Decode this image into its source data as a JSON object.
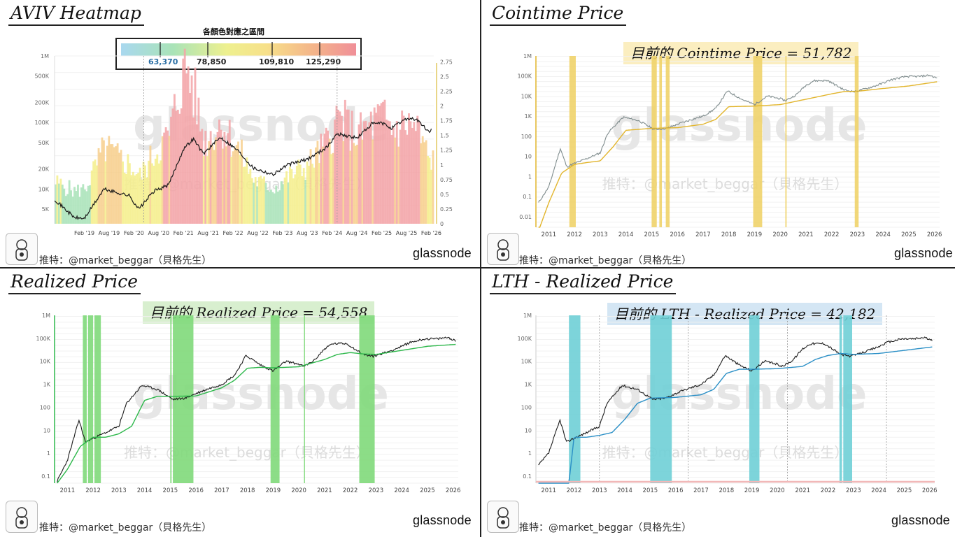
{
  "colors": {
    "aviv_band": [
      "#a9d8ef",
      "#a9e3b8",
      "#f4ef8c",
      "#f7cf8d",
      "#f3a3a7"
    ],
    "cointime_line": "#e2b52c",
    "realized_line": "#2db84b",
    "lth_line": "#2a8fc6",
    "price_line": "#1a1a1a",
    "price_line_grey": "#7f8c8d",
    "cointime_bands": "#f0d36a",
    "realized_bands": "#7fd97a",
    "lth_bands": "#6fcfd6",
    "callout_cointime_bg": "#fbeec0",
    "callout_realized_bg": "#d8efcf",
    "callout_lth_bg": "#d4e6f4"
  },
  "icons": [
    "avatar-icon",
    "glassnode-logo"
  ],
  "watermark": "glassnode",
  "handle_watermark": "推特：@market_beggar（貝格先生）",
  "credit": "推特：@market_beggar（貝格先生）",
  "logo": "glassnode",
  "chart_data": [
    {
      "type": "area",
      "title": "AVIV Heatmap",
      "legend_title": "各顏色對應之區間",
      "legend_thresholds": [
        "63,370",
        "78,850",
        "109,810",
        "125,290"
      ],
      "xlabel": "",
      "ylabel": "",
      "yscale": "log",
      "y_ticks": [
        "1M",
        "500K",
        "200K",
        "100K",
        "50K",
        "20K",
        "10K",
        "5K"
      ],
      "y2_ticks": [
        "2.75",
        "2.5",
        "2.25",
        "2",
        "1.75",
        "1.5",
        "1.25",
        "1",
        "0.75",
        "0.5",
        "0.25",
        "0"
      ],
      "x_ticks": [
        "Feb '19",
        "Aug '19",
        "Feb '20",
        "Aug '20",
        "Feb '21",
        "Aug '21",
        "Feb '22",
        "Aug '22",
        "Feb '23",
        "Aug '23",
        "Feb '24",
        "Aug '24",
        "Feb '25",
        "Aug '25",
        "Feb '26"
      ],
      "price_series": {
        "name": "",
        "x": [
          2018.5,
          2018.9,
          2019.1,
          2019.5,
          2019.7,
          2020.0,
          2020.2,
          2020.5,
          2020.8,
          2021.1,
          2021.3,
          2021.5,
          2021.85,
          2022.2,
          2022.5,
          2022.9,
          2023.2,
          2023.6,
          2024.0,
          2024.2,
          2024.6,
          2024.9,
          2025.1,
          2025.3,
          2025.6,
          2025.8,
          2026.05,
          2026.1
        ],
        "y": [
          7000,
          3700,
          3600,
          10000,
          9000,
          8000,
          5000,
          9200,
          11500,
          40000,
          57000,
          34000,
          60000,
          38000,
          21000,
          16500,
          23000,
          28000,
          43000,
          68000,
          58000,
          95000,
          98000,
          82000,
          115000,
          112000,
          72000,
          78000
        ]
      },
      "aviv_series": {
        "name": "",
        "x": [
          2018.5,
          2018.9,
          2019.1,
          2019.5,
          2019.7,
          2020.0,
          2020.2,
          2020.5,
          2020.8,
          2021.0,
          2021.15,
          2021.3,
          2021.5,
          2021.85,
          2022.2,
          2022.5,
          2022.9,
          2023.2,
          2023.6,
          2024.0,
          2024.2,
          2024.6,
          2024.9,
          2025.1,
          2025.3,
          2025.6,
          2025.8,
          2026.05,
          2026.1
        ],
        "y": [
          0.7,
          0.55,
          0.6,
          1.3,
          1.15,
          1.0,
          0.8,
          1.2,
          1.5,
          2.3,
          2.7,
          2.2,
          1.4,
          1.7,
          1.25,
          0.75,
          0.6,
          0.8,
          1.0,
          1.4,
          1.8,
          1.5,
          1.7,
          1.8,
          1.6,
          1.7,
          1.6,
          1.05,
          1.1
        ]
      }
    },
    {
      "type": "line",
      "title": "Cointime Price",
      "callout": "目前的 Cointime Price = 51,782",
      "yscale": "log",
      "y_ticks": [
        "1M",
        "100K",
        "10K",
        "1K",
        "100",
        "10",
        "1",
        "0.1",
        "0.01"
      ],
      "x_ticks": [
        "2011",
        "2012",
        "2013",
        "2014",
        "2015",
        "2016",
        "2017",
        "2018",
        "2019",
        "2020",
        "2021",
        "2022",
        "2023",
        "2024",
        "2025",
        "2026"
      ],
      "series": [
        {
          "name": "",
          "x": [
            2010.6,
            2011.0,
            2011.45,
            2011.7,
            2011.9,
            2012.5,
            2013.0,
            2013.3,
            2013.9,
            2014.5,
            2015.1,
            2015.6,
            2016.0,
            2016.5,
            2017.0,
            2017.5,
            2017.95,
            2018.5,
            2019.0,
            2019.5,
            2020.0,
            2020.2,
            2020.6,
            2021.0,
            2021.3,
            2021.85,
            2022.5,
            2022.9,
            2023.5,
            2024.0,
            2024.3,
            2024.9,
            2025.4,
            2025.8,
            2026.1
          ],
          "y": [
            0.05,
            0.3,
            25,
            3,
            4,
            8,
            15,
            150,
            900,
            600,
            220,
            250,
            400,
            650,
            1000,
            2500,
            18000,
            7000,
            3800,
            10000,
            7500,
            6000,
            11000,
            35000,
            58000,
            60000,
            20000,
            16500,
            27000,
            44000,
            65000,
            95000,
            95000,
            110000,
            78000
          ]
        },
        {
          "name": "",
          "x": [
            2010.6,
            2011.0,
            2011.5,
            2012.0,
            2012.5,
            2013.0,
            2013.5,
            2014.0,
            2015.0,
            2016.0,
            2017.0,
            2017.5,
            2018.0,
            2019.0,
            2020.0,
            2021.0,
            2022.0,
            2022.5,
            2023.0,
            2024.0,
            2025.0,
            2026.1
          ],
          "y": [
            0.002,
            0.05,
            1.5,
            4,
            5,
            6,
            30,
            200,
            250,
            270,
            400,
            700,
            3000,
            3200,
            3800,
            7000,
            13000,
            17000,
            17500,
            24000,
            32000,
            51782
          ]
        }
      ],
      "highlight_ranges": [
        [
          2011.8,
          2012.05
        ],
        [
          2015.0,
          2015.2
        ],
        [
          2015.3,
          2015.4
        ],
        [
          2015.55,
          2015.7
        ],
        [
          2018.95,
          2019.3
        ],
        [
          2020.2,
          2020.25
        ],
        [
          2022.9,
          2023.05
        ]
      ]
    },
    {
      "type": "line",
      "title": "Realized Price",
      "callout": "目前的 Realized Price = 54,558",
      "yscale": "log",
      "y_ticks": [
        "1M",
        "100K",
        "10K",
        "1K",
        "100",
        "10",
        "1",
        "0.1"
      ],
      "x_ticks": [
        "2011",
        "2012",
        "2013",
        "2014",
        "2015",
        "2016",
        "2017",
        "2018",
        "2019",
        "2020",
        "2021",
        "2022",
        "2023",
        "2024",
        "2025",
        "2026"
      ],
      "series": [
        {
          "name": "",
          "x": [
            2010.6,
            2011.0,
            2011.45,
            2011.7,
            2011.9,
            2012.5,
            2013.0,
            2013.3,
            2013.9,
            2014.5,
            2015.1,
            2015.6,
            2016.0,
            2016.5,
            2017.0,
            2017.5,
            2017.95,
            2018.5,
            2019.0,
            2019.5,
            2020.0,
            2020.2,
            2020.6,
            2021.0,
            2021.3,
            2021.85,
            2022.5,
            2022.9,
            2023.5,
            2024.0,
            2024.3,
            2024.9,
            2025.4,
            2025.8,
            2026.1
          ],
          "y": [
            0.06,
            0.5,
            28,
            3,
            4,
            8,
            15,
            150,
            900,
            600,
            220,
            250,
            400,
            650,
            1000,
            2500,
            18000,
            7000,
            3800,
            10000,
            7500,
            6000,
            11000,
            35000,
            58000,
            60000,
            20000,
            16500,
            27000,
            44000,
            65000,
            95000,
            95000,
            110000,
            78000
          ]
        },
        {
          "name": "",
          "x": [
            2010.6,
            2011.0,
            2011.5,
            2012.0,
            2012.5,
            2013.0,
            2013.5,
            2014.0,
            2014.5,
            2015.0,
            2016.0,
            2017.0,
            2017.5,
            2018.0,
            2018.5,
            2019.0,
            2020.0,
            2021.0,
            2021.5,
            2022.0,
            2022.5,
            2023.0,
            2024.0,
            2025.0,
            2026.1
          ],
          "y": [
            0.05,
            0.2,
            2,
            5,
            5,
            7,
            15,
            200,
            300,
            300,
            310,
            700,
            1500,
            5000,
            5500,
            5200,
            5800,
            12000,
            20000,
            24000,
            21000,
            20000,
            30000,
            45000,
            54558
          ]
        }
      ],
      "highlight_ranges": [
        [
          2011.6,
          2011.75
        ],
        [
          2011.8,
          2012.0
        ],
        [
          2012.05,
          2012.3
        ],
        [
          2015.0,
          2015.05
        ],
        [
          2015.1,
          2015.9
        ],
        [
          2018.9,
          2019.25
        ],
        [
          2020.2,
          2020.23
        ],
        [
          2022.35,
          2022.95
        ]
      ]
    },
    {
      "type": "line",
      "title": "LTH - Realized Price",
      "callout": "目前的 LTH - Realized Price = 42,182",
      "yscale": "log",
      "y_ticks": [
        "1M",
        "100K",
        "10K",
        "1K",
        "100",
        "10",
        "1",
        "0.1"
      ],
      "x_ticks": [
        "2011",
        "2012",
        "2013",
        "2014",
        "2015",
        "2016",
        "2017",
        "2018",
        "2019",
        "2020",
        "2021",
        "2022",
        "2023",
        "2024",
        "2025",
        "2026"
      ],
      "series": [
        {
          "name": "",
          "x": [
            2010.6,
            2011.0,
            2011.45,
            2011.7,
            2011.9,
            2012.5,
            2013.0,
            2013.3,
            2013.9,
            2014.5,
            2015.1,
            2015.6,
            2016.0,
            2016.5,
            2017.0,
            2017.5,
            2017.95,
            2018.5,
            2019.0,
            2019.5,
            2020.0,
            2020.2,
            2020.6,
            2021.0,
            2021.3,
            2021.85,
            2022.5,
            2022.9,
            2023.5,
            2024.0,
            2024.3,
            2024.9,
            2025.4,
            2025.8,
            2026.1
          ],
          "y": [
            0.3,
            1.0,
            28,
            3,
            4,
            8,
            15,
            150,
            900,
            600,
            220,
            250,
            400,
            650,
            1000,
            2500,
            18000,
            7000,
            3800,
            10000,
            7500,
            6000,
            11000,
            35000,
            58000,
            60000,
            20000,
            16500,
            27000,
            44000,
            65000,
            95000,
            95000,
            110000,
            78000
          ]
        },
        {
          "name": "",
          "x": [
            2010.6,
            2011.8,
            2012.0,
            2012.5,
            2013.0,
            2013.5,
            2014.0,
            2014.5,
            2015.0,
            2016.0,
            2017.0,
            2017.5,
            2018.0,
            2018.5,
            2019.0,
            2020.0,
            2021.0,
            2021.5,
            2022.0,
            2022.5,
            2023.0,
            2024.0,
            2025.0,
            2026.1
          ],
          "y": [
            0.05,
            0.05,
            5,
            5,
            6,
            8,
            30,
            150,
            250,
            270,
            350,
            600,
            3000,
            4500,
            4500,
            4800,
            6000,
            12000,
            18000,
            22000,
            20000,
            22000,
            30000,
            42182
          ]
        }
      ],
      "highlight_ranges": [
        [
          2011.8,
          2012.25
        ],
        [
          2015.0,
          2015.85
        ],
        [
          2018.9,
          2019.3
        ],
        [
          2022.45,
          2022.55
        ],
        [
          2022.6,
          2022.95
        ]
      ]
    }
  ]
}
